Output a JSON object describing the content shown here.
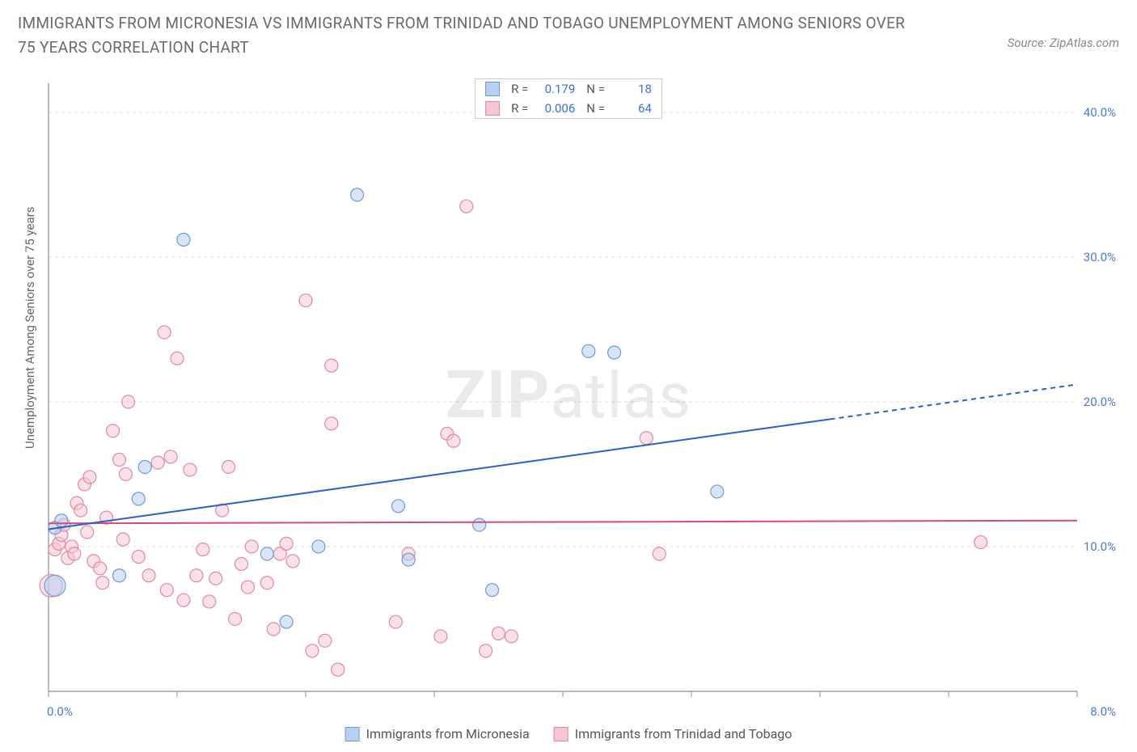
{
  "title": "IMMIGRANTS FROM MICRONESIA VS IMMIGRANTS FROM TRINIDAD AND TOBAGO UNEMPLOYMENT AMONG SENIORS OVER 75 YEARS CORRELATION CHART",
  "source": "Source: ZipAtlas.com",
  "ylabel": "Unemployment Among Seniors over 75 years",
  "watermark_zip": "ZIP",
  "watermark_atlas": "atlas",
  "chart": {
    "type": "scatter",
    "plot_background": "#ffffff",
    "grid_color": "#d9dde2",
    "border_color": "#888f97",
    "xlim": [
      0,
      8
    ],
    "ylim": [
      0,
      42
    ],
    "x_ticks": [
      0,
      1,
      2,
      3,
      4,
      5,
      6,
      7,
      8
    ],
    "x_tick_labels": {
      "0": "0.0%",
      "8": "8.0%"
    },
    "y_ticks": [
      10,
      20,
      30,
      40
    ],
    "y_tick_labels": {
      "10": "10.0%",
      "20": "20.0%",
      "30": "30.0%",
      "40": "40.0%"
    },
    "right_axis_label_color": "#4a7bd0",
    "series": [
      {
        "name": "Immigrants from Micronesia",
        "color_fill": "#b8cff0",
        "color_stroke": "#6a9bd8",
        "r_value": "0.179",
        "n_value": "18",
        "trend": {
          "x1": 0,
          "y1": 11.2,
          "x2": 6.08,
          "y2": 18.8,
          "x2_dash": 8.0,
          "y2_dash": 21.2,
          "color": "#2a5fd0",
          "width": 2
        },
        "points": [
          {
            "x": 0.05,
            "y": 7.3,
            "r": 13
          },
          {
            "x": 0.05,
            "y": 11.3,
            "r": 8
          },
          {
            "x": 0.1,
            "y": 11.8,
            "r": 8
          },
          {
            "x": 0.55,
            "y": 8.0,
            "r": 8
          },
          {
            "x": 0.7,
            "y": 13.3,
            "r": 8
          },
          {
            "x": 0.75,
            "y": 15.5,
            "r": 8
          },
          {
            "x": 1.05,
            "y": 31.2,
            "r": 8
          },
          {
            "x": 1.7,
            "y": 9.5,
            "r": 8
          },
          {
            "x": 1.85,
            "y": 4.8,
            "r": 8
          },
          {
            "x": 2.1,
            "y": 10.0,
            "r": 8
          },
          {
            "x": 2.4,
            "y": 34.3,
            "r": 8
          },
          {
            "x": 2.72,
            "y": 12.8,
            "r": 8
          },
          {
            "x": 2.8,
            "y": 9.1,
            "r": 8
          },
          {
            "x": 3.35,
            "y": 11.5,
            "r": 8
          },
          {
            "x": 4.2,
            "y": 23.5,
            "r": 8
          },
          {
            "x": 4.4,
            "y": 23.4,
            "r": 8
          },
          {
            "x": 3.45,
            "y": 7.0,
            "r": 8
          },
          {
            "x": 5.2,
            "y": 13.8,
            "r": 8
          }
        ]
      },
      {
        "name": "Immigrants from Trinidad and Tobago",
        "color_fill": "#f6c6d3",
        "color_stroke": "#e08aa0",
        "r_value": "0.006",
        "n_value": "64",
        "trend": {
          "x1": 0,
          "y1": 11.6,
          "x2": 8.0,
          "y2": 11.8,
          "color": "#d84a78",
          "width": 2
        },
        "points": [
          {
            "x": 0.02,
            "y": 7.3,
            "r": 14
          },
          {
            "x": 0.05,
            "y": 9.8,
            "r": 8
          },
          {
            "x": 0.08,
            "y": 10.2,
            "r": 8
          },
          {
            "x": 0.1,
            "y": 10.8,
            "r": 8
          },
          {
            "x": 0.12,
            "y": 11.5,
            "r": 8
          },
          {
            "x": 0.15,
            "y": 9.2,
            "r": 8
          },
          {
            "x": 0.18,
            "y": 10.0,
            "r": 8
          },
          {
            "x": 0.2,
            "y": 9.5,
            "r": 8
          },
          {
            "x": 0.22,
            "y": 13.0,
            "r": 8
          },
          {
            "x": 0.25,
            "y": 12.5,
            "r": 8
          },
          {
            "x": 0.28,
            "y": 14.3,
            "r": 8
          },
          {
            "x": 0.32,
            "y": 14.8,
            "r": 8
          },
          {
            "x": 0.35,
            "y": 9.0,
            "r": 8
          },
          {
            "x": 0.4,
            "y": 8.5,
            "r": 8
          },
          {
            "x": 0.42,
            "y": 7.5,
            "r": 8
          },
          {
            "x": 0.45,
            "y": 12.0,
            "r": 8
          },
          {
            "x": 0.5,
            "y": 18.0,
            "r": 8
          },
          {
            "x": 0.55,
            "y": 16.0,
            "r": 8
          },
          {
            "x": 0.58,
            "y": 10.5,
            "r": 8
          },
          {
            "x": 0.6,
            "y": 15.0,
            "r": 8
          },
          {
            "x": 0.62,
            "y": 20.0,
            "r": 8
          },
          {
            "x": 0.7,
            "y": 9.3,
            "r": 8
          },
          {
            "x": 0.78,
            "y": 8.0,
            "r": 8
          },
          {
            "x": 0.85,
            "y": 15.8,
            "r": 8
          },
          {
            "x": 0.9,
            "y": 24.8,
            "r": 8
          },
          {
            "x": 0.92,
            "y": 7.0,
            "r": 8
          },
          {
            "x": 0.95,
            "y": 16.2,
            "r": 8
          },
          {
            "x": 1.0,
            "y": 23.0,
            "r": 8
          },
          {
            "x": 1.05,
            "y": 6.3,
            "r": 8
          },
          {
            "x": 1.1,
            "y": 15.3,
            "r": 8
          },
          {
            "x": 1.15,
            "y": 8.0,
            "r": 8
          },
          {
            "x": 1.2,
            "y": 9.8,
            "r": 8
          },
          {
            "x": 1.25,
            "y": 6.2,
            "r": 8
          },
          {
            "x": 1.3,
            "y": 7.8,
            "r": 8
          },
          {
            "x": 1.4,
            "y": 15.5,
            "r": 8
          },
          {
            "x": 1.45,
            "y": 5.0,
            "r": 8
          },
          {
            "x": 1.5,
            "y": 8.8,
            "r": 8
          },
          {
            "x": 1.55,
            "y": 7.2,
            "r": 8
          },
          {
            "x": 1.58,
            "y": 10.0,
            "r": 8
          },
          {
            "x": 1.7,
            "y": 7.5,
            "r": 8
          },
          {
            "x": 1.75,
            "y": 4.3,
            "r": 8
          },
          {
            "x": 1.8,
            "y": 9.5,
            "r": 8
          },
          {
            "x": 1.85,
            "y": 10.2,
            "r": 8
          },
          {
            "x": 1.9,
            "y": 9.0,
            "r": 8
          },
          {
            "x": 2.0,
            "y": 27.0,
            "r": 8
          },
          {
            "x": 2.05,
            "y": 2.8,
            "r": 8
          },
          {
            "x": 2.15,
            "y": 3.5,
            "r": 8
          },
          {
            "x": 2.2,
            "y": 22.5,
            "r": 8
          },
          {
            "x": 2.2,
            "y": 18.5,
            "r": 8
          },
          {
            "x": 2.25,
            "y": 1.5,
            "r": 8
          },
          {
            "x": 2.7,
            "y": 4.8,
            "r": 8
          },
          {
            "x": 2.8,
            "y": 9.5,
            "r": 8
          },
          {
            "x": 3.05,
            "y": 3.8,
            "r": 8
          },
          {
            "x": 3.1,
            "y": 17.8,
            "r": 8
          },
          {
            "x": 3.15,
            "y": 17.3,
            "r": 8
          },
          {
            "x": 3.25,
            "y": 33.5,
            "r": 8
          },
          {
            "x": 3.4,
            "y": 2.8,
            "r": 8
          },
          {
            "x": 3.5,
            "y": 4.0,
            "r": 8
          },
          {
            "x": 3.6,
            "y": 3.8,
            "r": 8
          },
          {
            "x": 4.65,
            "y": 17.5,
            "r": 8
          },
          {
            "x": 4.75,
            "y": 9.5,
            "r": 8
          },
          {
            "x": 7.25,
            "y": 10.3,
            "r": 8
          },
          {
            "x": 1.35,
            "y": 12.5,
            "r": 8
          },
          {
            "x": 0.3,
            "y": 11.0,
            "r": 8
          }
        ]
      }
    ]
  },
  "legend_bottom": [
    {
      "label": "Immigrants from Micronesia",
      "fill": "#b8cff0",
      "stroke": "#6a9bd8"
    },
    {
      "label": "Immigrants from Trinidad and Tobago",
      "fill": "#f6c6d3",
      "stroke": "#e08aa0"
    }
  ]
}
